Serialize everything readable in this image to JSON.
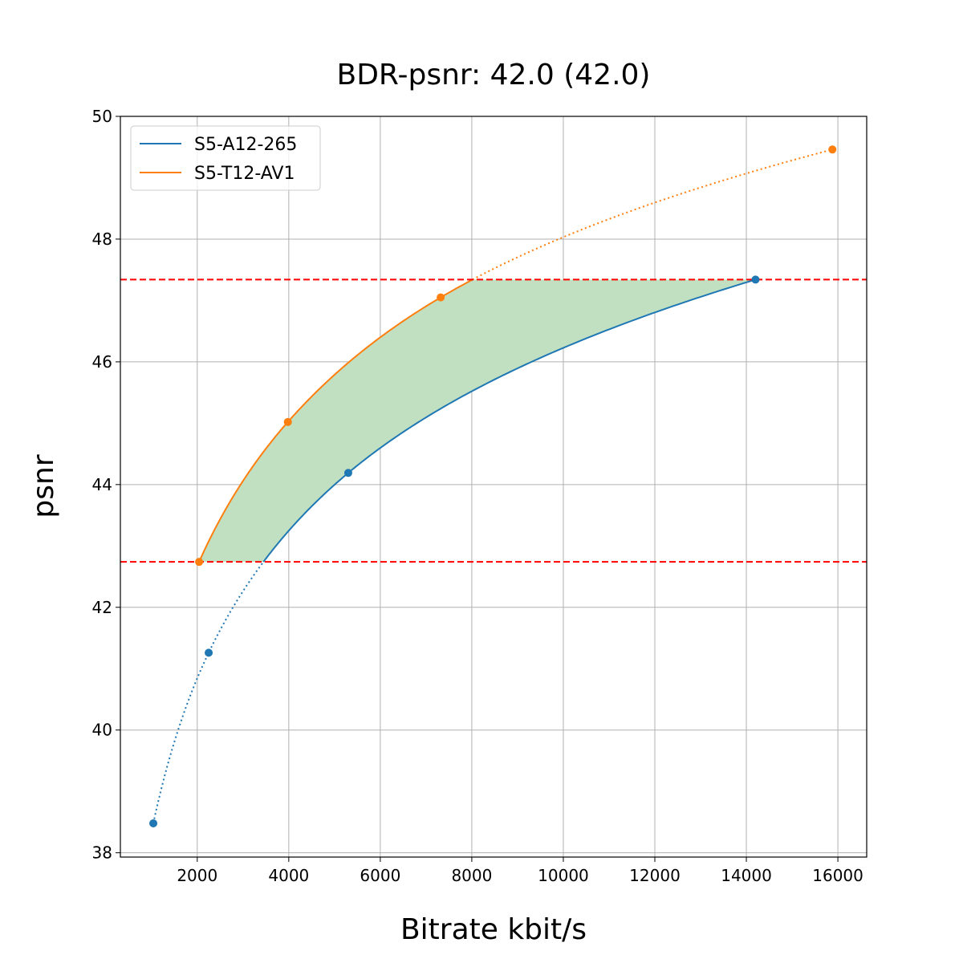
{
  "chart_data": {
    "type": "line",
    "title": "BDR-psnr: 42.0 (42.0)",
    "x_label": "Bitrate kbit/s",
    "y_label": "psnr",
    "series": [
      {
        "name": "S5-A12-265",
        "color": "#1f77b4",
        "x": [
          1040,
          2250,
          5300,
          14200
        ],
        "values": [
          38.48,
          41.26,
          44.19,
          47.34
        ]
      },
      {
        "name": "S5-T12-AV1",
        "color": "#ff7f0e",
        "x": [
          2040,
          3980,
          7320,
          15880
        ],
        "values": [
          42.74,
          45.02,
          47.05,
          49.46
        ]
      }
    ],
    "xlim": [
      320,
      16630
    ],
    "ylim": [
      37.93,
      50.0
    ],
    "xticks": [
      2000,
      4000,
      6000,
      8000,
      10000,
      12000,
      14000,
      16000
    ],
    "yticks": [
      38,
      40,
      42,
      44,
      46,
      48,
      50
    ],
    "grid": true,
    "legend": "upper left",
    "fill_color": "#c1e0c1",
    "hline_color": "#ff0000"
  }
}
